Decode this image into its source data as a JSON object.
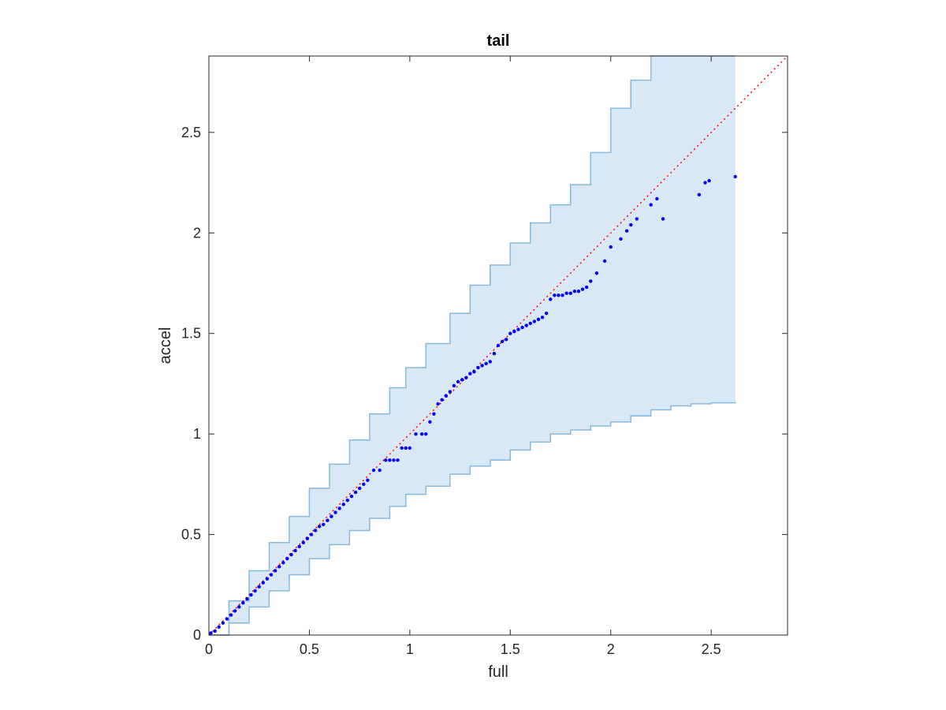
{
  "chart_data": {
    "type": "scatter",
    "title": "tail",
    "xlabel": "full",
    "ylabel": "accel",
    "xlim": [
      0,
      2.88
    ],
    "ylim": [
      0,
      2.88
    ],
    "xticks": [
      0,
      0.5,
      1,
      1.5,
      2,
      2.5
    ],
    "yticks": [
      0,
      0.5,
      1,
      1.5,
      2,
      2.5
    ],
    "xtick_labels": [
      "0",
      "0.5",
      "1",
      "1.5",
      "2",
      "2.5"
    ],
    "ytick_labels": [
      "0",
      "0.5",
      "1",
      "1.5",
      "2",
      "2.5"
    ],
    "grid": false,
    "colors": {
      "points": "#0000ff",
      "band_fill": "#d8e8f4",
      "band_edge": "#86b9dc",
      "reference_line": "#ff0000",
      "axes": "#262626"
    },
    "reference_line": {
      "style": "dotted",
      "x": [
        0,
        2.88
      ],
      "y": [
        0,
        2.88
      ]
    },
    "band": {
      "x": [
        0,
        0.1,
        0.2,
        0.3,
        0.4,
        0.5,
        0.6,
        0.7,
        0.8,
        0.9,
        0.98,
        1.08,
        1.2,
        1.3,
        1.4,
        1.5,
        1.6,
        1.7,
        1.8,
        1.9,
        2.0,
        2.1,
        2.2,
        2.3,
        2.4,
        2.5,
        2.62
      ],
      "upper": [
        0,
        0.17,
        0.32,
        0.46,
        0.59,
        0.73,
        0.85,
        0.97,
        1.1,
        1.23,
        1.33,
        1.45,
        1.6,
        1.74,
        1.84,
        1.95,
        2.05,
        2.14,
        2.24,
        2.4,
        2.62,
        2.76,
        2.88,
        2.88,
        2.88,
        2.88,
        2.88
      ],
      "lower": [
        0,
        0.06,
        0.14,
        0.22,
        0.3,
        0.38,
        0.45,
        0.52,
        0.58,
        0.64,
        0.7,
        0.74,
        0.8,
        0.84,
        0.87,
        0.92,
        0.96,
        1.0,
        1.02,
        1.04,
        1.06,
        1.09,
        1.12,
        1.14,
        1.15,
        1.155,
        1.16
      ]
    },
    "series": [
      {
        "x": [
          0.01,
          0.03,
          0.05,
          0.07,
          0.09,
          0.11,
          0.13,
          0.15,
          0.17,
          0.19,
          0.21,
          0.23,
          0.25,
          0.27,
          0.29,
          0.31,
          0.33,
          0.35,
          0.37,
          0.39,
          0.41,
          0.43,
          0.45,
          0.47,
          0.49,
          0.51,
          0.53,
          0.55,
          0.57,
          0.59,
          0.61,
          0.63,
          0.65,
          0.67,
          0.69,
          0.71,
          0.73,
          0.75,
          0.77,
          0.79,
          0.82,
          0.85,
          0.88,
          0.9,
          0.92,
          0.94,
          0.96,
          0.98,
          1.0,
          1.03,
          1.06,
          1.08,
          1.1,
          1.12,
          1.14,
          1.16,
          1.18,
          1.2,
          1.22,
          1.24,
          1.26,
          1.28,
          1.3,
          1.32,
          1.34,
          1.36,
          1.38,
          1.4,
          1.42,
          1.44,
          1.46,
          1.48,
          1.5,
          1.52,
          1.54,
          1.56,
          1.58,
          1.6,
          1.62,
          1.64,
          1.66,
          1.68,
          1.7,
          1.72,
          1.74,
          1.76,
          1.78,
          1.8,
          1.82,
          1.84,
          1.86,
          1.88,
          1.9,
          1.93,
          1.97,
          2.0,
          2.05,
          2.08,
          2.1,
          2.13,
          2.2,
          2.23,
          2.26,
          2.44,
          2.47,
          2.49,
          2.62
        ],
        "y": [
          0.01,
          0.02,
          0.04,
          0.06,
          0.08,
          0.1,
          0.12,
          0.14,
          0.16,
          0.18,
          0.2,
          0.22,
          0.24,
          0.26,
          0.28,
          0.3,
          0.32,
          0.34,
          0.36,
          0.38,
          0.4,
          0.42,
          0.44,
          0.46,
          0.48,
          0.5,
          0.52,
          0.54,
          0.55,
          0.57,
          0.59,
          0.61,
          0.63,
          0.65,
          0.67,
          0.69,
          0.71,
          0.73,
          0.75,
          0.77,
          0.82,
          0.82,
          0.87,
          0.87,
          0.87,
          0.87,
          0.93,
          0.93,
          0.93,
          1.0,
          1.0,
          1.0,
          1.06,
          1.1,
          1.15,
          1.17,
          1.19,
          1.21,
          1.24,
          1.26,
          1.27,
          1.28,
          1.3,
          1.31,
          1.33,
          1.34,
          1.35,
          1.36,
          1.4,
          1.44,
          1.46,
          1.47,
          1.5,
          1.51,
          1.52,
          1.53,
          1.54,
          1.55,
          1.56,
          1.57,
          1.58,
          1.6,
          1.67,
          1.69,
          1.69,
          1.69,
          1.7,
          1.7,
          1.71,
          1.71,
          1.72,
          1.73,
          1.76,
          1.8,
          1.86,
          1.93,
          1.97,
          2.01,
          2.04,
          2.07,
          2.14,
          2.17,
          2.07,
          2.19,
          2.25,
          2.26,
          2.28
        ]
      }
    ]
  }
}
